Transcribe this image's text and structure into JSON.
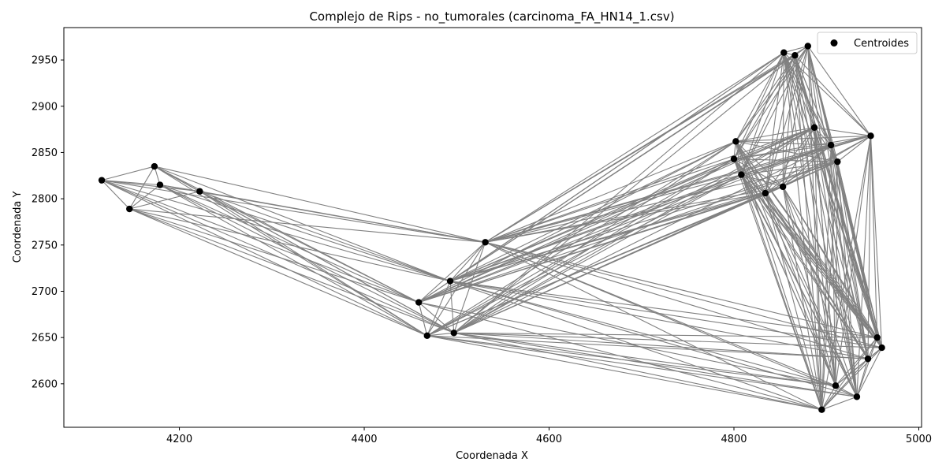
{
  "chart_data": {
    "type": "scatter",
    "title": "Complejo de Rips - no_tumorales (carcinoma_FA_HN14_1.csv)",
    "xlabel": "Coordenada X",
    "ylabel": "Coordenada Y",
    "xlim": [
      4075,
      5003
    ],
    "ylim": [
      2553,
      2985
    ],
    "xticks": [
      4200,
      4400,
      4600,
      4800,
      5000
    ],
    "yticks": [
      2600,
      2650,
      2700,
      2750,
      2800,
      2850,
      2900,
      2950
    ],
    "legend": {
      "label": "Centroides",
      "placement": "top-right"
    },
    "colors": {
      "points": "#000000",
      "edges": "#808080"
    },
    "points": [
      {
        "x": 4116,
        "y": 2820
      },
      {
        "x": 4146,
        "y": 2789
      },
      {
        "x": 4173,
        "y": 2835
      },
      {
        "x": 4179,
        "y": 2815
      },
      {
        "x": 4222,
        "y": 2808
      },
      {
        "x": 4459,
        "y": 2688
      },
      {
        "x": 4468,
        "y": 2652
      },
      {
        "x": 4493,
        "y": 2711
      },
      {
        "x": 4497,
        "y": 2655
      },
      {
        "x": 4531,
        "y": 2753
      },
      {
        "x": 4802,
        "y": 2862
      },
      {
        "x": 4800,
        "y": 2843
      },
      {
        "x": 4808,
        "y": 2826
      },
      {
        "x": 4834,
        "y": 2806
      },
      {
        "x": 4853,
        "y": 2813
      },
      {
        "x": 4854,
        "y": 2958
      },
      {
        "x": 4866,
        "y": 2955
      },
      {
        "x": 4880,
        "y": 2965
      },
      {
        "x": 4887,
        "y": 2877
      },
      {
        "x": 4905,
        "y": 2858
      },
      {
        "x": 4912,
        "y": 2840
      },
      {
        "x": 4948,
        "y": 2868
      },
      {
        "x": 4895,
        "y": 2572
      },
      {
        "x": 4910,
        "y": 2598
      },
      {
        "x": 4933,
        "y": 2586
      },
      {
        "x": 4945,
        "y": 2627
      },
      {
        "x": 4955,
        "y": 2650
      },
      {
        "x": 4960,
        "y": 2639
      }
    ]
  }
}
